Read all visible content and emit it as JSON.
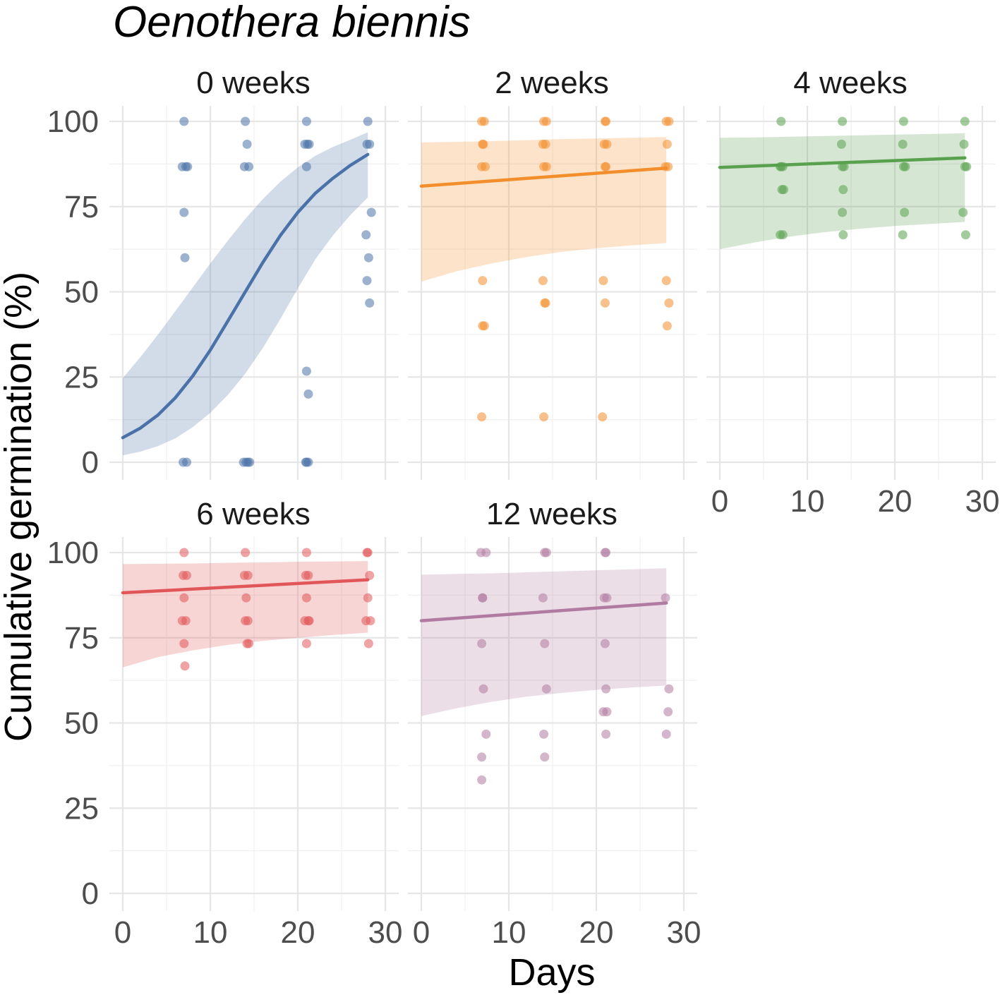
{
  "chart_data": {
    "type": "scatter",
    "title": "Oenothera biennis",
    "xlabel": "Days",
    "ylabel": "Cumulative germination (%)",
    "xlim": [
      0,
      30
    ],
    "ylim": [
      0,
      100
    ],
    "xticks": [
      "0",
      "10",
      "20",
      "30"
    ],
    "yticks": [
      "0",
      "25",
      "50",
      "75",
      "100"
    ],
    "grid": true,
    "legend": "none",
    "panels": [
      {
        "label": "0 weeks",
        "color": "#4a72a8",
        "curve_x": [
          0,
          2,
          4,
          6,
          8,
          10,
          12,
          14,
          16,
          18,
          20,
          22,
          24,
          26,
          28
        ],
        "curve_y": [
          7.2,
          10,
          13.8,
          18.9,
          25.3,
          32.9,
          41.4,
          50,
          58.6,
          66.5,
          73.3,
          78.9,
          83.3,
          87.1,
          90.3
        ],
        "band_lower": [
          2,
          3.1,
          4.7,
          7,
          10.3,
          14.5,
          19.7,
          26,
          33.5,
          42,
          51,
          59.5,
          66.5,
          72.5,
          77.7
        ],
        "band_upper": [
          24.7,
          30.8,
          37.4,
          44.3,
          51.3,
          58.3,
          65,
          71.4,
          77.2,
          82.3,
          86.5,
          89.9,
          92.5,
          94.6,
          96.8
        ],
        "points_x": [
          7,
          7.2,
          6.8,
          7.4,
          7.0,
          7.1,
          6.9,
          7.3,
          14,
          14.2,
          13.9,
          14.4,
          14.1,
          14.3,
          13.8,
          14.5,
          21,
          21.1,
          20.8,
          21.3,
          21.0,
          20.9,
          21.2,
          21.0,
          21.2,
          21.0,
          28,
          27.9,
          28.2,
          28.4,
          27.8,
          28.1,
          27.9,
          28.2
        ],
        "points_y": [
          100,
          86.7,
          86.7,
          86.7,
          73.3,
          60,
          0,
          0,
          100,
          93.3,
          86.7,
          86.7,
          0,
          0,
          0,
          0,
          100,
          93.3,
          93.3,
          93.3,
          86.7,
          0,
          0,
          26.7,
          20,
          0,
          100,
          93.3,
          93.3,
          73.3,
          66.7,
          60,
          53.3,
          46.7
        ]
      },
      {
        "label": "2 weeks",
        "color": "#f28e2b",
        "curve_x": [
          0,
          28
        ],
        "curve_y": [
          81,
          86.3
        ],
        "band_lower": [
          53,
          56,
          58.3,
          60.2,
          61.7,
          62.8,
          63.6,
          64.3
        ],
        "band_upper": [
          93.8,
          94.0,
          94.2,
          94.5,
          94.8,
          95.0,
          95.2,
          95.4
        ],
        "band_x": [
          0,
          4,
          8,
          12,
          16,
          20,
          24,
          28
        ],
        "points_x": [
          6.9,
          7.2,
          7.0,
          7.1,
          6.9,
          7.3,
          7.0,
          7.2,
          7.0,
          6.9,
          14,
          14.3,
          13.9,
          14.2,
          14.0,
          14.3,
          13.9,
          14.1,
          14.2,
          14.0,
          21,
          21.1,
          20.9,
          21.2,
          21.0,
          21.1,
          20.8,
          21.0,
          20.7,
          28,
          28.3,
          28.1,
          27.9,
          28.2,
          28.0,
          28.3,
          28.1
        ],
        "points_y": [
          100,
          100,
          93.3,
          93.3,
          86.7,
          86.7,
          53.3,
          40,
          40,
          13.3,
          100,
          100,
          93.3,
          93.3,
          86.7,
          86.7,
          53.3,
          46.7,
          46.7,
          13.3,
          100,
          100,
          93.3,
          93.3,
          86.7,
          86.7,
          53.3,
          46.7,
          13.3,
          100,
          100,
          93.3,
          86.7,
          86.7,
          53.3,
          46.7,
          40
        ]
      },
      {
        "label": "4 weeks",
        "color": "#59a14f",
        "curve_x": [
          0,
          28
        ],
        "curve_y": [
          86.5,
          89.3
        ],
        "band_x": [
          0,
          4,
          8,
          12,
          16,
          20,
          24,
          28
        ],
        "band_lower": [
          62.5,
          64.5,
          66.2,
          67.5,
          68.5,
          69.3,
          69.9,
          70.5
        ],
        "band_upper": [
          95.2,
          95.3,
          95.5,
          95.7,
          95.9,
          96.1,
          96.3,
          96.5
        ],
        "points_x": [
          7,
          6.9,
          7.2,
          7.0,
          7.3,
          7.1,
          6.9,
          7.2,
          14,
          13.9,
          14.2,
          14.0,
          14.1,
          14.0,
          14.1,
          21,
          20.9,
          21.2,
          21.0,
          21.1,
          20.9,
          28,
          27.9,
          28.2,
          28.0,
          27.8,
          28.1
        ],
        "points_y": [
          100,
          86.7,
          86.7,
          86.7,
          80,
          80,
          66.7,
          66.7,
          100,
          93.3,
          86.7,
          86.7,
          80,
          73.3,
          66.7,
          100,
          93.3,
          86.7,
          86.7,
          73.3,
          66.7,
          100,
          93.3,
          86.7,
          86.7,
          73.3,
          66.7
        ]
      },
      {
        "label": "6 weeks",
        "color": "#e15759",
        "curve_x": [
          0,
          28
        ],
        "curve_y": [
          88.2,
          92
        ],
        "band_x": [
          0,
          4,
          8,
          12,
          16,
          20,
          24,
          28
        ],
        "band_lower": [
          66.3,
          69.3,
          71.3,
          72.9,
          74.1,
          75.0,
          75.8,
          76.5
        ],
        "band_upper": [
          96.6,
          96.7,
          96.8,
          97.0,
          97.1,
          97.3,
          97.4,
          97.5
        ],
        "points_x": [
          7,
          6.9,
          7.3,
          7.0,
          6.8,
          7.2,
          7.0,
          7.1,
          14,
          13.9,
          14.3,
          14.1,
          14.0,
          14.3,
          14.2,
          14.4,
          21,
          20.9,
          21.2,
          21.0,
          21.3,
          20.8,
          21.2,
          21.0,
          28,
          27.9,
          28.2,
          28.0,
          27.8,
          28.3,
          28.1
        ],
        "points_y": [
          100,
          93.3,
          93.3,
          86.7,
          80,
          80,
          73.3,
          66.7,
          100,
          93.3,
          93.3,
          86.7,
          80,
          80,
          73.3,
          73.3,
          100,
          93.3,
          93.3,
          86.7,
          80,
          80,
          80,
          73.3,
          100,
          100,
          93.3,
          86.7,
          80,
          80,
          73.3
        ]
      },
      {
        "label": "12 weeks",
        "color": "#b07aa1",
        "curve_x": [
          0,
          28
        ],
        "curve_y": [
          80,
          85.2
        ],
        "band_x": [
          0,
          4,
          8,
          12,
          16,
          20,
          24,
          28
        ],
        "band_lower": [
          52,
          54.3,
          56.2,
          57.7,
          58.8,
          59.7,
          60.4,
          61
        ],
        "band_upper": [
          93.5,
          93.7,
          93.9,
          94.2,
          94.5,
          94.8,
          95.1,
          95.4
        ],
        "points_x": [
          6.8,
          7.4,
          7.0,
          7.0,
          6.9,
          7.1,
          7.4,
          6.9,
          6.9,
          14.1,
          14.3,
          13.9,
          14.1,
          14.3,
          14.0,
          14.1,
          21.0,
          21.1,
          20.9,
          21.2,
          21.0,
          21.1,
          20.8,
          21.2,
          21.1,
          27.9,
          28.3,
          28.2,
          28.0
        ],
        "points_y": [
          100,
          100,
          86.7,
          86.7,
          73.3,
          60,
          46.7,
          40,
          33.3,
          100,
          100,
          86.7,
          73.3,
          60,
          46.7,
          40,
          100,
          100,
          86.7,
          86.7,
          73.3,
          60,
          53.3,
          53.3,
          46.7,
          86.7,
          60,
          53.3,
          46.7
        ]
      }
    ]
  }
}
